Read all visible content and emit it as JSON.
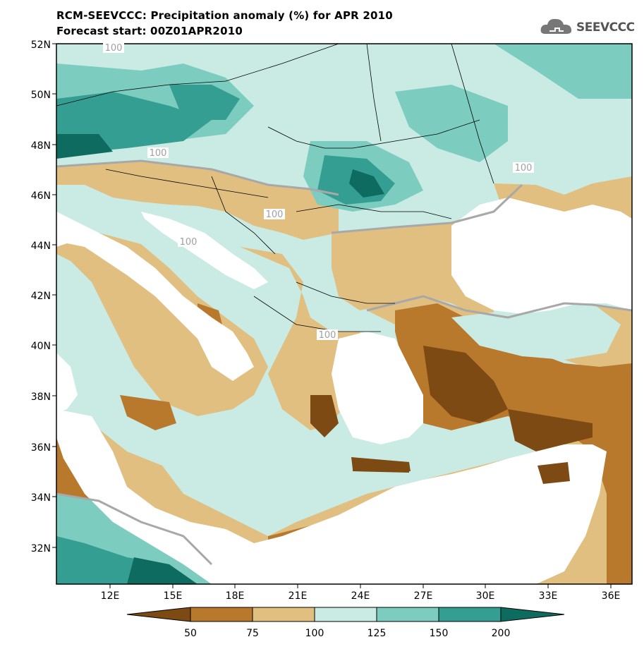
{
  "header": {
    "title_line1": "RCM-SEEVCCC: Precipitation anomaly (%) for APR 2010",
    "title_line2": "Forecast start: 00Z01APR2010",
    "logo_text": "SEEVCCC"
  },
  "map": {
    "lat_labels": [
      "52N",
      "50N",
      "48N",
      "46N",
      "44N",
      "42N",
      "40N",
      "38N",
      "36N",
      "34N",
      "32N"
    ],
    "lon_labels": [
      "12E",
      "15E",
      "18E",
      "21E",
      "24E",
      "27E",
      "30E",
      "33E",
      "36E"
    ],
    "contour_labels": [
      "100",
      "100",
      "100",
      "100",
      "100",
      "100",
      "100"
    ],
    "colors": {
      "lt50": "#7c4a12",
      "50_75": "#b8792d",
      "75_100": "#e0bf80",
      "100_125": "#c9ebe4",
      "125_150": "#7ccdc0",
      "150_200": "#359e92",
      "gt200": "#0d6b60",
      "sea": "#ffffff",
      "contour": "#a8a8a8"
    }
  },
  "colorbar": {
    "labels": [
      "50",
      "75",
      "100",
      "125",
      "150",
      "200"
    ]
  }
}
